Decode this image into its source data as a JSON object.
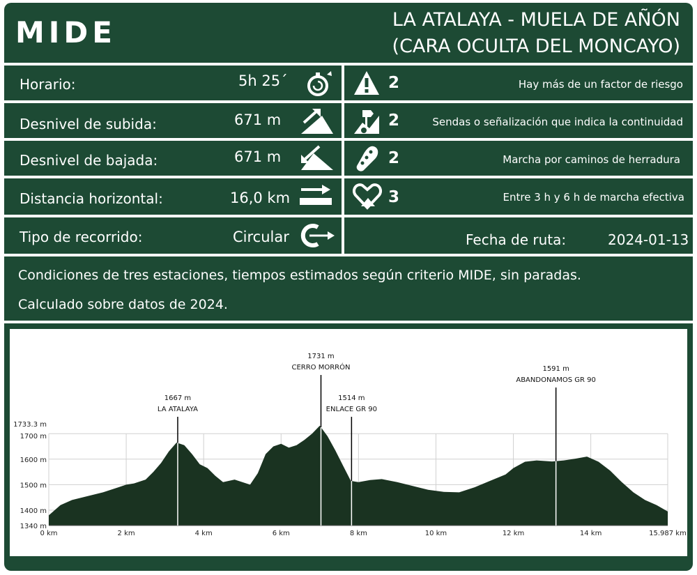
{
  "header": {
    "logo": "MIDE",
    "title_line1": "LA ATALAYA - MUELA DE AÑÓN",
    "title_line2": "(CARA OCULTA DEL MONCAYO)"
  },
  "stats": [
    {
      "label": "Horario:",
      "value": "5h 25´",
      "icon": "stopwatch-icon"
    },
    {
      "label": "Desnivel de subida:",
      "value": "671 m",
      "icon": "ascent-icon"
    },
    {
      "label": "Desnivel de bajada:",
      "value": "671 m",
      "icon": "descent-icon"
    },
    {
      "label": "Distancia horizontal:",
      "value": "16,0 km",
      "icon": "distance-icon"
    },
    {
      "label": "Tipo de recorrido:",
      "value": "Circular",
      "icon": "circular-route-icon"
    }
  ],
  "ratings": [
    {
      "score": "2",
      "text": "Hay más de un factor de riesgo",
      "icon": "warning-icon"
    },
    {
      "score": "2",
      "text": "Sendas o señalización que indica la continuidad",
      "icon": "signpost-icon"
    },
    {
      "score": "2",
      "text": "Marcha por caminos de herradura",
      "icon": "footprint-icon"
    },
    {
      "score": "3",
      "text": "Entre 3 h y 6 h de marcha efectiva",
      "icon": "effort-heart-icon"
    }
  ],
  "date": {
    "label": "Fecha de ruta:",
    "value": "2024-01-13"
  },
  "notes": {
    "line1": "Condiciones de tres estaciones, tiempos estimados según criterio MIDE, sin paradas.",
    "line2": "Calculado sobre datos de 2024."
  },
  "colors": {
    "brand_green": "#1d4a34",
    "profile_fill": "#1a3321",
    "white": "#ffffff"
  },
  "chart_data": {
    "type": "area",
    "xlabel": "",
    "ylabel": "",
    "xlim": [
      0,
      15.987
    ],
    "ylim": [
      1340,
      1733.3
    ],
    "x_ticks": [
      "0 km",
      "2 km",
      "4 km",
      "6 km",
      "8 km",
      "10 km",
      "12 km",
      "14 km",
      "15.987 km"
    ],
    "x_tick_values": [
      0,
      2,
      4,
      6,
      8,
      10,
      12,
      14,
      15.987
    ],
    "y_ticks": [
      "1340 m",
      "1400 m",
      "1500 m",
      "1600 m",
      "1700 m",
      "1733.3 m"
    ],
    "y_tick_values": [
      1340,
      1400,
      1500,
      1600,
      1700,
      1733.3
    ],
    "grid": true,
    "x": [
      0,
      0.3,
      0.6,
      1.0,
      1.4,
      1.8,
      2.0,
      2.2,
      2.5,
      2.7,
      2.9,
      3.1,
      3.3,
      3.5,
      3.7,
      3.9,
      4.1,
      4.3,
      4.5,
      4.8,
      5.0,
      5.2,
      5.4,
      5.6,
      5.8,
      6.0,
      6.2,
      6.4,
      6.6,
      6.8,
      7.0,
      7.2,
      7.4,
      7.6,
      7.8,
      8.0,
      8.3,
      8.6,
      9.0,
      9.4,
      9.8,
      10.2,
      10.6,
      11.0,
      11.4,
      11.8,
      12.0,
      12.3,
      12.6,
      13.0,
      13.3,
      13.6,
      13.9,
      14.2,
      14.5,
      14.8,
      15.1,
      15.4,
      15.7,
      15.987
    ],
    "y": [
      1380,
      1420,
      1440,
      1455,
      1470,
      1490,
      1500,
      1505,
      1520,
      1550,
      1585,
      1630,
      1665,
      1655,
      1620,
      1580,
      1565,
      1535,
      1510,
      1520,
      1510,
      1500,
      1545,
      1620,
      1650,
      1660,
      1645,
      1655,
      1675,
      1700,
      1731,
      1690,
      1635,
      1575,
      1515,
      1510,
      1518,
      1522,
      1510,
      1495,
      1480,
      1472,
      1470,
      1490,
      1515,
      1540,
      1565,
      1590,
      1595,
      1591,
      1595,
      1602,
      1610,
      1590,
      1555,
      1510,
      1470,
      1440,
      1420,
      1395
    ],
    "annotations": [
      {
        "x": 3.33,
        "elevation": "1667 m",
        "label": "LA ATALAYA"
      },
      {
        "x": 7.03,
        "elevation": "1731 m",
        "label": "CERRO MORRÓN"
      },
      {
        "x": 7.82,
        "elevation": "1514 m",
        "label": "ENLACE GR 90"
      },
      {
        "x": 13.1,
        "elevation": "1591 m",
        "label": "ABANDONAMOS GR 90"
      }
    ]
  }
}
